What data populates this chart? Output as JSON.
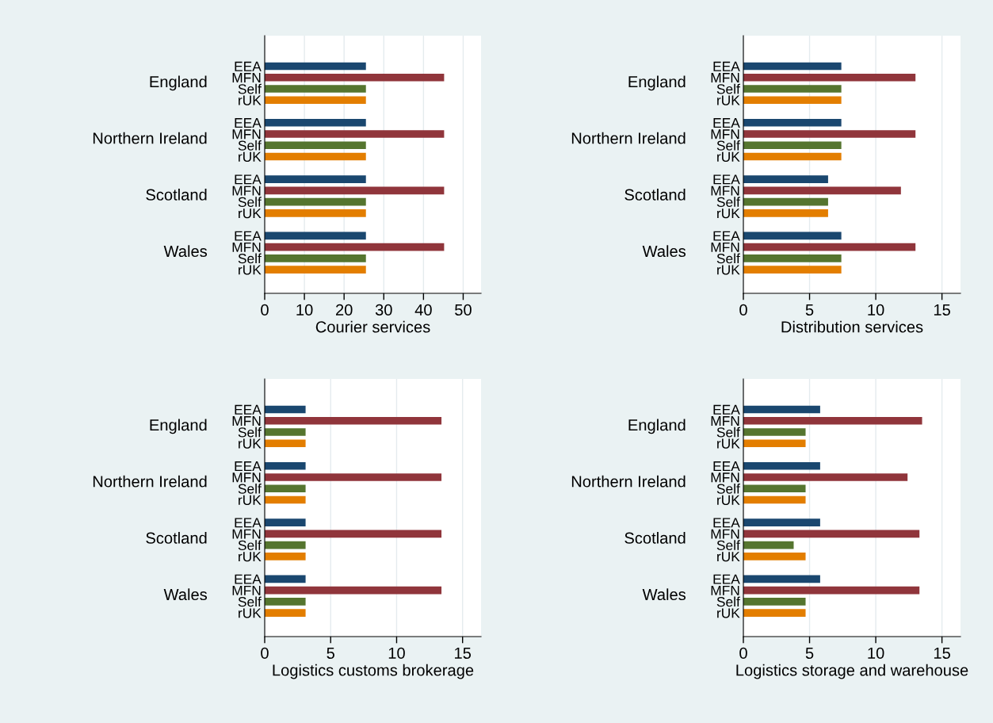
{
  "chart_data": [
    {
      "type": "bar",
      "orientation": "horizontal",
      "xlabel": "Courier services",
      "categories": [
        "England",
        "Northern Ireland",
        "Scotland",
        "Wales"
      ],
      "xlim": [
        0,
        54.5
      ],
      "xticks": [
        0,
        10,
        20,
        30,
        40,
        50
      ],
      "grid": "x",
      "series": [
        {
          "name": "EEA",
          "color": "#1a476f",
          "values": [
            25.5,
            25.5,
            25.5,
            25.5
          ]
        },
        {
          "name": "MFN",
          "color": "#90353b",
          "values": [
            45.2,
            45.2,
            45.2,
            45.2
          ]
        },
        {
          "name": "Self",
          "color": "#55752f",
          "values": [
            25.5,
            25.5,
            25.5,
            25.5
          ]
        },
        {
          "name": "rUK",
          "color": "#e37e00",
          "values": [
            25.5,
            25.5,
            25.5,
            25.5
          ]
        }
      ]
    },
    {
      "type": "bar",
      "orientation": "horizontal",
      "xlabel": "Distribution services",
      "categories": [
        "England",
        "Northern Ireland",
        "Scotland",
        "Wales"
      ],
      "xlim": [
        0,
        16.4
      ],
      "xticks": [
        0,
        5,
        10,
        15
      ],
      "grid": "x",
      "series": [
        {
          "name": "EEA",
          "color": "#1a476f",
          "values": [
            7.4,
            7.4,
            6.4,
            7.4
          ]
        },
        {
          "name": "MFN",
          "color": "#90353b",
          "values": [
            13.0,
            13.0,
            11.9,
            13.0
          ]
        },
        {
          "name": "Self",
          "color": "#55752f",
          "values": [
            7.4,
            7.4,
            6.4,
            7.4
          ]
        },
        {
          "name": "rUK",
          "color": "#e37e00",
          "values": [
            7.4,
            7.4,
            6.4,
            7.4
          ]
        }
      ]
    },
    {
      "type": "bar",
      "orientation": "horizontal",
      "xlabel": "Logistics customs brokerage",
      "categories": [
        "England",
        "Northern Ireland",
        "Scotland",
        "Wales"
      ],
      "xlim": [
        0,
        16.4
      ],
      "xticks": [
        0,
        5,
        10,
        15
      ],
      "grid": "x",
      "series": [
        {
          "name": "EEA",
          "color": "#1a476f",
          "values": [
            3.1,
            3.1,
            3.1,
            3.1
          ]
        },
        {
          "name": "MFN",
          "color": "#90353b",
          "values": [
            13.4,
            13.4,
            13.4,
            13.4
          ]
        },
        {
          "name": "Self",
          "color": "#55752f",
          "values": [
            3.1,
            3.1,
            3.1,
            3.1
          ]
        },
        {
          "name": "rUK",
          "color": "#e37e00",
          "values": [
            3.1,
            3.1,
            3.1,
            3.1
          ]
        }
      ]
    },
    {
      "type": "bar",
      "orientation": "horizontal",
      "xlabel": "Logistics storage and warehouse",
      "categories": [
        "England",
        "Northern Ireland",
        "Scotland",
        "Wales"
      ],
      "xlim": [
        0,
        16.4
      ],
      "xticks": [
        0,
        5,
        10,
        15
      ],
      "grid": "x",
      "series": [
        {
          "name": "EEA",
          "color": "#1a476f",
          "values": [
            5.8,
            5.8,
            5.8,
            5.8
          ]
        },
        {
          "name": "MFN",
          "color": "#90353b",
          "values": [
            13.5,
            12.4,
            13.3,
            13.3
          ]
        },
        {
          "name": "Self",
          "color": "#55752f",
          "values": [
            4.7,
            4.7,
            3.8,
            4.7
          ]
        },
        {
          "name": "rUK",
          "color": "#e37e00",
          "values": [
            4.7,
            4.7,
            4.7,
            4.7
          ]
        }
      ]
    }
  ]
}
